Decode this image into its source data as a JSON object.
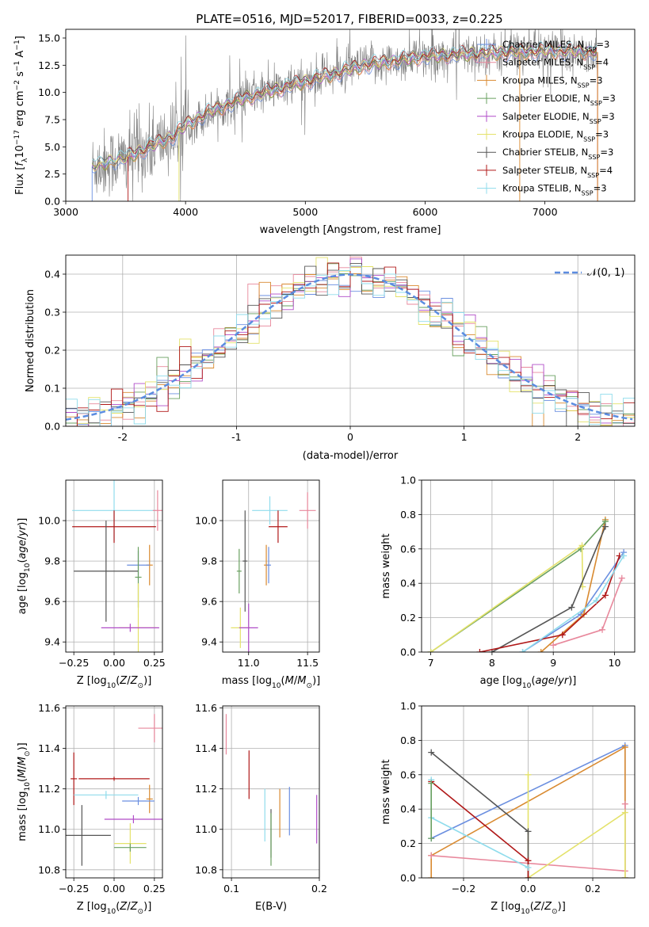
{
  "figure": {
    "title": "PLATE=0516, MJD=52017, FIBERID=0033, z=0.225",
    "models": [
      {
        "label": "Chabrier MILES, N",
        "sub": "SSP",
        "tail": "=3",
        "color": "#6b8fe0"
      },
      {
        "label": "Salpeter MILES, N",
        "sub": "SSP",
        "tail": "=4",
        "color": "#e8889c"
      },
      {
        "label": "Kroupa MILES, N",
        "sub": "SSP",
        "tail": "=3",
        "color": "#d98a30"
      },
      {
        "label": "Chabrier ELODIE, N",
        "sub": "SSP",
        "tail": "=3",
        "color": "#6aa060"
      },
      {
        "label": "Salpeter ELODIE, N",
        "sub": "SSP",
        "tail": "=3",
        "color": "#b04cc8"
      },
      {
        "label": "Kroupa ELODIE, N",
        "sub": "SSP",
        "tail": "=3",
        "color": "#e4e26a"
      },
      {
        "label": "Chabrier STELIB, N",
        "sub": "SSP",
        "tail": "=3",
        "color": "#555555"
      },
      {
        "label": "Salpeter STELIB, N",
        "sub": "SSP",
        "tail": "=4",
        "color": "#b01818"
      },
      {
        "label": "Kroupa STELIB, N",
        "sub": "SSP",
        "tail": "=3",
        "color": "#8fdcec"
      }
    ],
    "data_color": "#808080"
  },
  "chart_data": [
    {
      "id": "spectrum",
      "type": "line",
      "xlabel": "wavelength [Angstrom, rest frame]",
      "ylabel": "Flux [f_λ 10^-17 erg cm^-2 s^-1 A^-1]",
      "xlim": [
        3000,
        7750
      ],
      "ylim": [
        0,
        15.8
      ],
      "xticks": [
        3000,
        4000,
        5000,
        6000,
        7000
      ],
      "yticks": [
        0.0,
        2.5,
        5.0,
        7.5,
        10.0,
        12.5,
        15.0
      ],
      "continuum": {
        "x": [
          3220,
          3500,
          3700,
          3900,
          4000,
          4200,
          4500,
          5000,
          5500,
          6000,
          6500,
          7000,
          7440
        ],
        "y": [
          3.2,
          4.0,
          5.0,
          6.0,
          7.0,
          8.2,
          9.5,
          11.0,
          12.5,
          13.3,
          13.6,
          13.8,
          13.7
        ]
      },
      "wavelength_range": [
        3220,
        7440
      ],
      "grid": false,
      "legend_position": "right"
    },
    {
      "id": "residuals",
      "type": "area",
      "xlabel": "(data-model)/error",
      "ylabel": "Normed distribution",
      "xlim": [
        -2.5,
        2.5
      ],
      "ylim": [
        0,
        0.45
      ],
      "xticks": [
        -2,
        -1,
        0,
        1,
        2
      ],
      "yticks": [
        0.0,
        0.1,
        0.2,
        0.3,
        0.4
      ],
      "bin_width": 0.1,
      "reference": {
        "name": "𝒩(0, 1)",
        "mean": 0,
        "sigma": 1,
        "color": "#5b8ce0"
      },
      "grid": true,
      "legend_position": "top-right"
    },
    {
      "id": "age-vs-Z",
      "type": "scatter",
      "xlabel": "Z [log10(Z/Z⊙)]",
      "ylabel": "age [log10(age/yr)]",
      "xlim": [
        -0.3,
        0.3
      ],
      "ylim": [
        9.35,
        10.2
      ],
      "xticks": [
        -0.25,
        0.0,
        0.25
      ],
      "yticks": [
        9.4,
        9.6,
        9.8,
        10.0
      ],
      "points": [
        {
          "model": 8,
          "x": 0.0,
          "y": 10.05,
          "xerr": 0.26,
          "yerr": 0.15
        },
        {
          "model": 1,
          "x": 0.27,
          "y": 10.05,
          "xerr": 0.03,
          "yerr": 0.1
        },
        {
          "model": 7,
          "x": 0.0,
          "y": 9.97,
          "xerr": 0.26,
          "yerr": 0.08
        },
        {
          "model": 2,
          "x": 0.22,
          "y": 9.78,
          "xerr": 0.02,
          "yerr": 0.1
        },
        {
          "model": 0,
          "x": 0.15,
          "y": 9.78,
          "xerr": 0.07,
          "yerr": 0.07
        },
        {
          "model": 6,
          "x": -0.05,
          "y": 9.75,
          "xerr": 0.2,
          "yerr": 0.25
        },
        {
          "model": 3,
          "x": 0.15,
          "y": 9.72,
          "xerr": 0.02,
          "yerr": 0.15
        },
        {
          "model": 5,
          "x": 0.15,
          "y": 9.47,
          "xerr": 0.12,
          "yerr": 0.22
        },
        {
          "model": 4,
          "x": 0.1,
          "y": 9.47,
          "xerr": 0.18,
          "yerr": 0.02
        }
      ]
    },
    {
      "id": "age-vs-mass",
      "type": "scatter",
      "xlabel": "mass [log10(M/M⊙)]",
      "ylabel": "",
      "xlim": [
        10.78,
        11.6
      ],
      "ylim": [
        9.35,
        10.2
      ],
      "xticks": [
        11.0,
        11.5
      ],
      "yticks": [
        9.4,
        9.6,
        9.8,
        10.0
      ],
      "points": [
        {
          "model": 8,
          "x": 11.18,
          "y": 10.05,
          "xerr": 0.15,
          "yerr": 0.07
        },
        {
          "model": 1,
          "x": 11.5,
          "y": 10.05,
          "xerr": 0.07,
          "yerr": 0.09
        },
        {
          "model": 7,
          "x": 11.25,
          "y": 9.97,
          "xerr": 0.08,
          "yerr": 0.08
        },
        {
          "model": 6,
          "x": 10.97,
          "y": 9.8,
          "xerr": 0.02,
          "yerr": 0.25
        },
        {
          "model": 2,
          "x": 11.15,
          "y": 9.78,
          "xerr": 0.02,
          "yerr": 0.1
        },
        {
          "model": 0,
          "x": 11.17,
          "y": 9.78,
          "xerr": 0.02,
          "yerr": 0.09
        },
        {
          "model": 3,
          "x": 10.92,
          "y": 9.75,
          "xerr": 0.02,
          "yerr": 0.11
        },
        {
          "model": 5,
          "x": 10.93,
          "y": 9.47,
          "xerr": 0.08,
          "yerr": 0.1
        },
        {
          "model": 4,
          "x": 11.0,
          "y": 9.47,
          "xerr": 0.08,
          "yerr": 0.12
        }
      ]
    },
    {
      "id": "mass-weight-vs-age",
      "type": "line",
      "xlabel": "age [log10(age/yr)]",
      "ylabel": "mass weight",
      "xlim": [
        6.85,
        10.33
      ],
      "ylim": [
        0,
        1
      ],
      "xticks": [
        7,
        8,
        9,
        10
      ],
      "yticks": [
        0.0,
        0.2,
        0.4,
        0.6,
        0.8,
        1.0
      ],
      "grid": true,
      "series": [
        {
          "model": 0,
          "x": [
            8.5,
            9.45,
            10.15
          ],
          "y": [
            0.0,
            0.22,
            0.58
          ]
        },
        {
          "model": 1,
          "x": [
            9.0,
            9.8,
            10.12
          ],
          "y": [
            0.04,
            0.13,
            0.43
          ]
        },
        {
          "model": 2,
          "x": [
            8.8,
            9.5,
            9.85
          ],
          "y": [
            0.0,
            0.22,
            0.77
          ]
        },
        {
          "model": 3,
          "x": [
            7.0,
            9.45,
            9.85
          ],
          "y": [
            0.0,
            0.6,
            0.76
          ]
        },
        {
          "model": 5,
          "x": [
            7.0,
            9.47,
            9.48
          ],
          "y": [
            0.0,
            0.62,
            0.38
          ]
        },
        {
          "model": 6,
          "x": [
            8.0,
            9.3,
            9.85
          ],
          "y": [
            0.0,
            0.26,
            0.73
          ]
        },
        {
          "model": 7,
          "x": [
            7.8,
            9.15,
            9.85,
            10.08
          ],
          "y": [
            0.0,
            0.1,
            0.33,
            0.56
          ]
        },
        {
          "model": 8,
          "x": [
            8.5,
            9.7,
            10.15
          ],
          "y": [
            0.0,
            0.3,
            0.56
          ]
        }
      ]
    },
    {
      "id": "mass-vs-Z",
      "type": "scatter",
      "xlabel": "Z [log10(Z/Z⊙)]",
      "ylabel": "mass [log10(M/M⊙)]",
      "xlim": [
        -0.3,
        0.3
      ],
      "ylim": [
        10.76,
        11.61
      ],
      "xticks": [
        -0.25,
        0.0,
        0.25
      ],
      "yticks": [
        10.8,
        11.0,
        11.2,
        11.4,
        11.6
      ],
      "points": [
        {
          "model": 1,
          "x": 0.25,
          "y": 11.5,
          "xerr": 0.1,
          "yerr": 0.07
        },
        {
          "model": 7,
          "x": -0.25,
          "y": 11.25,
          "xerr": 0.02,
          "yerr": 0.13
        },
        {
          "model": 7,
          "x": 0.0,
          "y": 11.25,
          "xerr": 0.22,
          "yerr": 0.01
        },
        {
          "model": 8,
          "x": -0.05,
          "y": 11.17,
          "xerr": 0.2,
          "yerr": 0.02
        },
        {
          "model": 2,
          "x": 0.22,
          "y": 11.15,
          "xerr": 0.02,
          "yerr": 0.07
        },
        {
          "model": 0,
          "x": 0.15,
          "y": 11.14,
          "xerr": 0.1,
          "yerr": 0.02
        },
        {
          "model": 4,
          "x": 0.12,
          "y": 11.05,
          "xerr": 0.18,
          "yerr": 0.02
        },
        {
          "model": 6,
          "x": -0.2,
          "y": 10.97,
          "xerr": 0.18,
          "yerr": 0.15
        },
        {
          "model": 5,
          "x": 0.1,
          "y": 10.93,
          "xerr": 0.1,
          "yerr": 0.1
        },
        {
          "model": 3,
          "x": 0.1,
          "y": 10.91,
          "xerr": 0.1,
          "yerr": 0.02
        }
      ]
    },
    {
      "id": "mass-vs-EBV",
      "type": "scatter",
      "xlabel": "E(B-V)",
      "ylabel": "",
      "xlim": [
        0.09,
        0.2
      ],
      "ylim": [
        10.76,
        11.61
      ],
      "xticks": [
        0.1,
        0.2
      ],
      "yticks": [
        10.8,
        11.0,
        11.2,
        11.4,
        11.6
      ],
      "points": [
        {
          "model": 1,
          "x": 0.094,
          "y": 11.47,
          "yerr": 0.1
        },
        {
          "model": 7,
          "x": 0.12,
          "y": 11.27,
          "yerr": 0.12
        },
        {
          "model": 2,
          "x": 0.155,
          "y": 11.08,
          "yerr": 0.12
        },
        {
          "model": 0,
          "x": 0.166,
          "y": 11.09,
          "yerr": 0.12
        },
        {
          "model": 8,
          "x": 0.138,
          "y": 11.07,
          "yerr": 0.13
        },
        {
          "model": 6,
          "x": 0.145,
          "y": 10.98,
          "yerr": 0.12
        },
        {
          "model": 3,
          "x": 0.145,
          "y": 10.95,
          "yerr": 0.13
        },
        {
          "model": 4,
          "x": 0.197,
          "y": 11.05,
          "yerr": 0.12
        }
      ]
    },
    {
      "id": "mass-weight-vs-Z",
      "type": "line",
      "xlabel": "Z [log10(Z/Z⊙)]",
      "ylabel": "mass weight",
      "xlim": [
        -0.33,
        0.33
      ],
      "ylim": [
        0,
        1
      ],
      "xticks": [
        -0.2,
        0.0,
        0.2
      ],
      "yticks": [
        0.0,
        0.2,
        0.4,
        0.6,
        0.8,
        1.0
      ],
      "grid": true,
      "series": [
        {
          "model": 0,
          "x": [
            -0.3,
            0.3,
            0.3
          ],
          "y": [
            0.23,
            0.77,
            0.0
          ]
        },
        {
          "model": 2,
          "x": [
            -0.3,
            -0.3,
            0.3,
            0.3
          ],
          "y": [
            0.0,
            0.13,
            0.76,
            0.0
          ]
        },
        {
          "model": 1,
          "x": [
            -0.3,
            0.3,
            0.3
          ],
          "y": [
            0.13,
            0.04,
            0.43
          ]
        },
        {
          "model": 5,
          "x": [
            0.0,
            0.0,
            0.3,
            0.3
          ],
          "y": [
            0.6,
            0.0,
            0.38,
            0.0
          ]
        },
        {
          "model": 6,
          "x": [
            -0.3,
            0.0,
            0.0
          ],
          "y": [
            0.73,
            0.27,
            0.0
          ]
        },
        {
          "model": 7,
          "x": [
            -0.3,
            0.0,
            0.0
          ],
          "y": [
            0.56,
            0.1,
            0.0
          ]
        },
        {
          "model": 8,
          "x": [
            -0.3,
            -0.3,
            0.0
          ],
          "y": [
            0.57,
            0.35,
            0.06
          ]
        },
        {
          "model": 3,
          "x": [
            -0.3,
            -0.3
          ],
          "y": [
            0.23,
            0.55
          ]
        }
      ]
    }
  ]
}
